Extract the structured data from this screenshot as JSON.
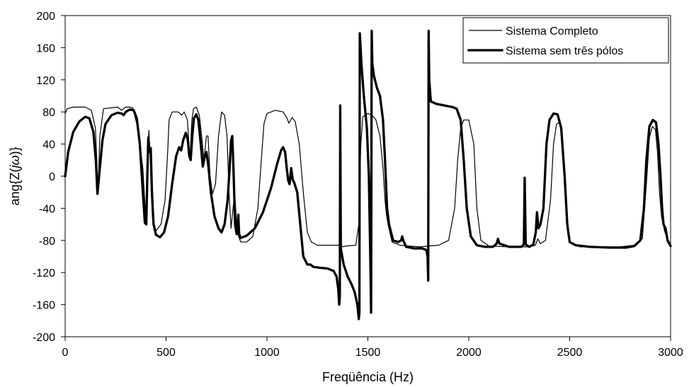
{
  "chart_data": {
    "type": "line",
    "title": "",
    "xlabel": "Freqüência (Hz)",
    "ylabel": "ang{Z(jω)}",
    "xlim": [
      0,
      3000
    ],
    "ylim": [
      -200,
      200
    ],
    "x_ticks": [
      0,
      500,
      1000,
      1500,
      2000,
      2500,
      3000
    ],
    "y_ticks": [
      200,
      160,
      120,
      80,
      40,
      0,
      -40,
      -80,
      -120,
      -160,
      -200
    ],
    "x_tick_labels": [
      "0",
      "500",
      "1000",
      "1500",
      "2000",
      "2500",
      "3000"
    ],
    "y_tick_labels": [
      "200",
      "160",
      "120",
      "80",
      "40",
      "0",
      "-40",
      "-80",
      "-120",
      "-160",
      "-200"
    ],
    "grid": false,
    "legend_position": "top-right",
    "series": [
      {
        "name": "Sistema Completo",
        "color": "#000000",
        "style": "thin",
        "points": [
          [
            0,
            78
          ],
          [
            10,
            84
          ],
          [
            40,
            86
          ],
          [
            100,
            86
          ],
          [
            130,
            82
          ],
          [
            150,
            60
          ],
          [
            163,
            -18
          ],
          [
            172,
            50
          ],
          [
            190,
            84
          ],
          [
            260,
            86
          ],
          [
            280,
            82
          ],
          [
            300,
            86
          ],
          [
            320,
            86
          ],
          [
            335,
            85
          ],
          [
            360,
            60
          ],
          [
            385,
            10
          ],
          [
            400,
            -55
          ],
          [
            408,
            20
          ],
          [
            415,
            57
          ],
          [
            422,
            20
          ],
          [
            432,
            -50
          ],
          [
            450,
            -68
          ],
          [
            475,
            -60
          ],
          [
            495,
            -30
          ],
          [
            508,
            30
          ],
          [
            515,
            70
          ],
          [
            530,
            80
          ],
          [
            560,
            80
          ],
          [
            578,
            76
          ],
          [
            590,
            80
          ],
          [
            606,
            70
          ],
          [
            618,
            20
          ],
          [
            628,
            70
          ],
          [
            636,
            84
          ],
          [
            650,
            86
          ],
          [
            665,
            76
          ],
          [
            678,
            46
          ],
          [
            688,
            20
          ],
          [
            700,
            50
          ],
          [
            708,
            50
          ],
          [
            718,
            0
          ],
          [
            730,
            -22
          ],
          [
            745,
            -10
          ],
          [
            760,
            50
          ],
          [
            775,
            80
          ],
          [
            790,
            76
          ],
          [
            802,
            50
          ],
          [
            812,
            -20
          ],
          [
            822,
            -65
          ],
          [
            832,
            -40
          ],
          [
            840,
            -20
          ],
          [
            852,
            -70
          ],
          [
            870,
            -82
          ],
          [
            900,
            -82
          ],
          [
            930,
            -75
          ],
          [
            955,
            -40
          ],
          [
            972,
            20
          ],
          [
            985,
            65
          ],
          [
            1000,
            78
          ],
          [
            1040,
            82
          ],
          [
            1080,
            80
          ],
          [
            1100,
            72
          ],
          [
            1108,
            66
          ],
          [
            1118,
            70
          ],
          [
            1125,
            73
          ],
          [
            1140,
            68
          ],
          [
            1160,
            40
          ],
          [
            1180,
            -20
          ],
          [
            1200,
            -70
          ],
          [
            1220,
            -82
          ],
          [
            1250,
            -86
          ],
          [
            1300,
            -86
          ],
          [
            1350,
            -86
          ],
          [
            1365,
            -85
          ],
          [
            1375,
            -88
          ],
          [
            1390,
            -87
          ],
          [
            1440,
            -86
          ],
          [
            1455,
            -60
          ],
          [
            1465,
            40
          ],
          [
            1475,
            74
          ],
          [
            1500,
            78
          ],
          [
            1520,
            76
          ],
          [
            1540,
            70
          ],
          [
            1560,
            50
          ],
          [
            1575,
            10
          ],
          [
            1585,
            -30
          ],
          [
            1592,
            -48
          ],
          [
            1600,
            -60
          ],
          [
            1620,
            -82
          ],
          [
            1660,
            -86
          ],
          [
            1700,
            -87
          ],
          [
            1760,
            -88
          ],
          [
            1800,
            -87
          ],
          [
            1850,
            -86
          ],
          [
            1900,
            -80
          ],
          [
            1930,
            -40
          ],
          [
            1945,
            20
          ],
          [
            1960,
            60
          ],
          [
            1975,
            70
          ],
          [
            2000,
            70
          ],
          [
            2025,
            40
          ],
          [
            2040,
            -40
          ],
          [
            2060,
            -80
          ],
          [
            2100,
            -87
          ],
          [
            2200,
            -88
          ],
          [
            2300,
            -88
          ],
          [
            2330,
            -86
          ],
          [
            2342,
            -78
          ],
          [
            2355,
            -84
          ],
          [
            2380,
            -80
          ],
          [
            2405,
            -30
          ],
          [
            2420,
            40
          ],
          [
            2435,
            65
          ],
          [
            2450,
            67
          ],
          [
            2465,
            40
          ],
          [
            2480,
            -30
          ],
          [
            2500,
            -82
          ],
          [
            2550,
            -88
          ],
          [
            2650,
            -88
          ],
          [
            2750,
            -88
          ],
          [
            2820,
            -86
          ],
          [
            2860,
            -78
          ],
          [
            2880,
            -10
          ],
          [
            2895,
            48
          ],
          [
            2910,
            62
          ],
          [
            2925,
            58
          ],
          [
            2935,
            30
          ],
          [
            2945,
            -20
          ],
          [
            2955,
            -50
          ],
          [
            2970,
            -68
          ],
          [
            2985,
            -80
          ],
          [
            3000,
            -86
          ]
        ]
      },
      {
        "name": "Sistema sem três pólos",
        "color": "#000000",
        "style": "thick",
        "points": [
          [
            0,
            0
          ],
          [
            15,
            30
          ],
          [
            40,
            55
          ],
          [
            70,
            68
          ],
          [
            100,
            74
          ],
          [
            120,
            72
          ],
          [
            140,
            55
          ],
          [
            152,
            20
          ],
          [
            160,
            -22
          ],
          [
            170,
            5
          ],
          [
            185,
            45
          ],
          [
            200,
            65
          ],
          [
            230,
            76
          ],
          [
            260,
            79
          ],
          [
            280,
            78
          ],
          [
            290,
            76
          ],
          [
            300,
            80
          ],
          [
            320,
            83
          ],
          [
            340,
            82
          ],
          [
            355,
            72
          ],
          [
            370,
            40
          ],
          [
            385,
            -20
          ],
          [
            395,
            -58
          ],
          [
            402,
            -60
          ],
          [
            408,
            10
          ],
          [
            412,
            48
          ],
          [
            418,
            30
          ],
          [
            424,
            35
          ],
          [
            430,
            -20
          ],
          [
            438,
            -60
          ],
          [
            450,
            -73
          ],
          [
            470,
            -76
          ],
          [
            490,
            -70
          ],
          [
            510,
            -50
          ],
          [
            530,
            -10
          ],
          [
            550,
            25
          ],
          [
            565,
            36
          ],
          [
            575,
            32
          ],
          [
            585,
            45
          ],
          [
            598,
            54
          ],
          [
            608,
            45
          ],
          [
            615,
            25
          ],
          [
            622,
            20
          ],
          [
            630,
            50
          ],
          [
            638,
            72
          ],
          [
            650,
            77
          ],
          [
            660,
            70
          ],
          [
            672,
            40
          ],
          [
            682,
            12
          ],
          [
            692,
            25
          ],
          [
            700,
            30
          ],
          [
            710,
            12
          ],
          [
            722,
            -20
          ],
          [
            740,
            -50
          ],
          [
            760,
            -65
          ],
          [
            775,
            -70
          ],
          [
            790,
            -60
          ],
          [
            805,
            -30
          ],
          [
            815,
            10
          ],
          [
            822,
            44
          ],
          [
            828,
            50
          ],
          [
            834,
            10
          ],
          [
            842,
            -60
          ],
          [
            850,
            -72
          ],
          [
            855,
            -60
          ],
          [
            858,
            -48
          ],
          [
            862,
            -72
          ],
          [
            870,
            -77
          ],
          [
            900,
            -74
          ],
          [
            940,
            -65
          ],
          [
            980,
            -45
          ],
          [
            1020,
            -15
          ],
          [
            1050,
            15
          ],
          [
            1070,
            32
          ],
          [
            1080,
            36
          ],
          [
            1090,
            30
          ],
          [
            1098,
            10
          ],
          [
            1105,
            -5
          ],
          [
            1112,
            -10
          ],
          [
            1120,
            10
          ],
          [
            1128,
            -5
          ],
          [
            1135,
            -8
          ],
          [
            1150,
            -20
          ],
          [
            1165,
            -60
          ],
          [
            1180,
            -100
          ],
          [
            1200,
            -110
          ],
          [
            1215,
            -110
          ],
          [
            1230,
            -113
          ],
          [
            1260,
            -114
          ],
          [
            1300,
            -115
          ],
          [
            1330,
            -118
          ],
          [
            1345,
            -125
          ],
          [
            1353,
            -140
          ],
          [
            1358,
            -160
          ],
          [
            1361,
            -150
          ],
          [
            1363,
            88
          ],
          [
            1366,
            -90
          ],
          [
            1380,
            -110
          ],
          [
            1400,
            -125
          ],
          [
            1420,
            -135
          ],
          [
            1435,
            -145
          ],
          [
            1448,
            -160
          ],
          [
            1455,
            -178
          ],
          [
            1458,
            -170
          ],
          [
            1460,
            178
          ],
          [
            1468,
            140
          ],
          [
            1480,
            100
          ],
          [
            1495,
            60
          ],
          [
            1505,
            0
          ],
          [
            1512,
            -100
          ],
          [
            1516,
            -170
          ],
          [
            1519,
            181
          ],
          [
            1522,
            140
          ],
          [
            1530,
            125
          ],
          [
            1545,
            110
          ],
          [
            1560,
            100
          ],
          [
            1575,
            70
          ],
          [
            1585,
            20
          ],
          [
            1595,
            -40
          ],
          [
            1605,
            -60
          ],
          [
            1625,
            -80
          ],
          [
            1650,
            -82
          ],
          [
            1665,
            -80
          ],
          [
            1670,
            -75
          ],
          [
            1675,
            -80
          ],
          [
            1690,
            -88
          ],
          [
            1730,
            -90
          ],
          [
            1770,
            -90
          ],
          [
            1790,
            -92
          ],
          [
            1796,
            -100
          ],
          [
            1799,
            -130
          ],
          [
            1801,
            181
          ],
          [
            1804,
            120
          ],
          [
            1812,
            93
          ],
          [
            1840,
            90
          ],
          [
            1880,
            88
          ],
          [
            1920,
            86
          ],
          [
            1940,
            84
          ],
          [
            1960,
            70
          ],
          [
            1975,
            20
          ],
          [
            1990,
            -40
          ],
          [
            2010,
            -75
          ],
          [
            2040,
            -86
          ],
          [
            2080,
            -88
          ],
          [
            2120,
            -88
          ],
          [
            2138,
            -84
          ],
          [
            2145,
            -78
          ],
          [
            2152,
            -84
          ],
          [
            2200,
            -88
          ],
          [
            2260,
            -88
          ],
          [
            2273,
            -85
          ],
          [
            2277,
            -2
          ],
          [
            2282,
            -85
          ],
          [
            2300,
            -88
          ],
          [
            2320,
            -85
          ],
          [
            2332,
            -70
          ],
          [
            2338,
            -45
          ],
          [
            2345,
            -65
          ],
          [
            2355,
            -60
          ],
          [
            2370,
            -40
          ],
          [
            2385,
            40
          ],
          [
            2400,
            70
          ],
          [
            2420,
            78
          ],
          [
            2440,
            77
          ],
          [
            2458,
            60
          ],
          [
            2475,
            0
          ],
          [
            2488,
            -60
          ],
          [
            2500,
            -82
          ],
          [
            2530,
            -86
          ],
          [
            2600,
            -88
          ],
          [
            2700,
            -89
          ],
          [
            2780,
            -89
          ],
          [
            2820,
            -87
          ],
          [
            2850,
            -80
          ],
          [
            2868,
            -40
          ],
          [
            2880,
            20
          ],
          [
            2895,
            62
          ],
          [
            2912,
            70
          ],
          [
            2928,
            67
          ],
          [
            2940,
            40
          ],
          [
            2950,
            0
          ],
          [
            2958,
            -40
          ],
          [
            2965,
            -60
          ],
          [
            2975,
            -65
          ],
          [
            2985,
            -80
          ],
          [
            3000,
            -87
          ]
        ]
      }
    ]
  }
}
